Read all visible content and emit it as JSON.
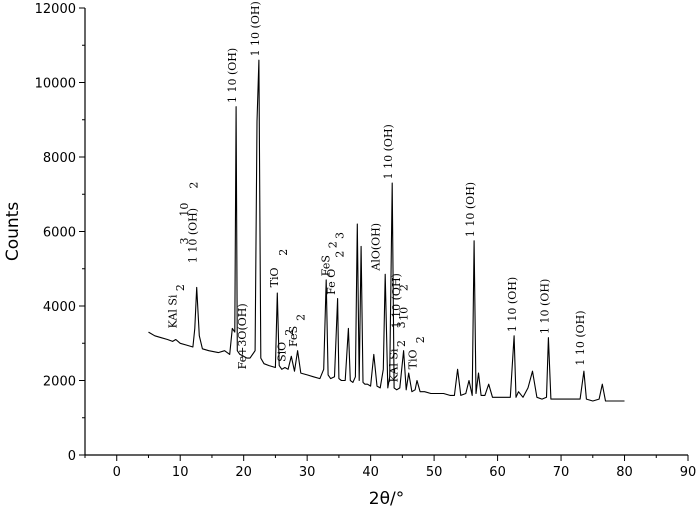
{
  "chart_data": {
    "type": "line",
    "title": "",
    "xlabel": "2θ/°",
    "ylabel": "Counts",
    "xlim": [
      -5,
      90
    ],
    "ylim": [
      0,
      12000
    ],
    "x_ticks": [
      0,
      10,
      20,
      30,
      40,
      50,
      60,
      70,
      80,
      90
    ],
    "y_ticks": [
      0,
      2000,
      4000,
      6000,
      8000,
      10000,
      12000
    ],
    "grid": false,
    "series": [
      {
        "x": [
          5.0,
          6.0,
          7.0,
          8.0,
          8.8,
          9.3,
          10.0,
          11.0,
          12.0,
          12.3,
          12.6,
          13.0,
          13.5,
          14.5,
          16.0,
          17.0,
          17.8,
          18.2,
          18.6,
          18.8,
          19.0,
          19.4,
          20.0,
          20.5,
          21.0,
          21.8,
          22.1,
          22.4,
          22.7,
          23.2,
          24.0,
          25.0,
          25.3,
          25.6,
          26.0,
          26.5,
          27.0,
          27.5,
          28.0,
          28.5,
          29.0,
          30.0,
          31.0,
          32.0,
          32.6,
          33.0,
          33.3,
          33.7,
          34.3,
          34.8,
          35.0,
          35.4,
          36.0,
          36.5,
          36.8,
          37.2,
          37.6,
          37.9,
          38.2,
          38.5,
          38.8,
          39.1,
          39.5,
          40.0,
          40.5,
          41.0,
          41.5,
          42.0,
          42.3,
          42.7,
          43.0,
          43.4,
          43.7,
          44.1,
          44.6,
          45.2,
          45.6,
          46.0,
          46.5,
          47.0,
          47.3,
          47.8,
          48.5,
          49.5,
          50.5,
          51.5,
          52.5,
          53.2,
          53.7,
          54.2,
          55.0,
          55.5,
          56.0,
          56.3,
          56.6,
          57.0,
          57.4,
          58.0,
          58.6,
          59.2,
          60.0,
          61.0,
          62.0,
          62.6,
          62.9,
          63.3,
          64.0,
          64.8,
          65.5,
          66.2,
          67.0,
          67.7,
          68.0,
          68.4,
          69.0,
          70.0,
          71.0,
          72.0,
          73.0,
          73.6,
          74.0,
          75.0,
          76.0,
          76.5,
          77.0,
          78.0,
          79.0,
          80.0
        ],
        "y": [
          3300,
          3200,
          3150,
          3100,
          3050,
          3100,
          3000,
          2950,
          2900,
          3400,
          4500,
          3200,
          2850,
          2800,
          2750,
          2800,
          2700,
          3400,
          3300,
          9350,
          2800,
          2700,
          2650,
          2600,
          2600,
          2800,
          8950,
          10600,
          2600,
          2450,
          2400,
          2350,
          4350,
          2400,
          2300,
          2350,
          2300,
          2650,
          2250,
          2800,
          2200,
          2150,
          2100,
          2050,
          2300,
          4700,
          2150,
          2050,
          2100,
          4200,
          2050,
          2000,
          2000,
          3400,
          2000,
          1950,
          2100,
          6200,
          2000,
          5600,
          1950,
          1900,
          1900,
          1850,
          2700,
          1850,
          1800,
          2300,
          4850,
          1800,
          2100,
          7300,
          1800,
          1750,
          1800,
          2800,
          1750,
          2200,
          1700,
          1750,
          2000,
          1700,
          1700,
          1650,
          1650,
          1650,
          1600,
          1600,
          2300,
          1600,
          1650,
          2000,
          1600,
          5750,
          1650,
          2200,
          1600,
          1600,
          1900,
          1550,
          1550,
          1550,
          1550,
          3200,
          1550,
          1700,
          1550,
          1800,
          2250,
          1550,
          1500,
          1550,
          3150,
          1500,
          1500,
          1500,
          1500,
          1500,
          1500,
          2250,
          1500,
          1450,
          1500,
          1900,
          1450,
          1450,
          1450,
          1450
        ]
      }
    ],
    "annotations": [
      {
        "text": "1 10 (OH)",
        "x": 18.8,
        "y": 9450,
        "rotate": -90
      },
      {
        "text": "1 10 (OH)",
        "x": 22.4,
        "y": 10700,
        "rotate": -90
      },
      {
        "text": "1 10 (OH)",
        "x": 43.4,
        "y": 7400,
        "rotate": -90
      },
      {
        "text": "1 10 (OH)",
        "x": 56.3,
        "y": 5850,
        "rotate": -90
      },
      {
        "text": "1 10 (OH)",
        "x": 62.9,
        "y": 3300,
        "rotate": -90
      },
      {
        "text": "1 10 (OH)",
        "x": 68.0,
        "y": 3250,
        "rotate": -90
      },
      {
        "text": "1 10 (OH)",
        "x": 73.6,
        "y": 2400,
        "rotate": -90
      },
      {
        "text": "1 10 (OH)",
        "x": 12.6,
        "y": 5150,
        "rotate": -90
      },
      {
        "text": "2",
        "x": 12.7,
        "y": 7150,
        "rotate": -90
      },
      {
        "text": "3",
        "x": 11.2,
        "y": 5650,
        "rotate": -90
      },
      {
        "text": "10",
        "x": 11.2,
        "y": 6400,
        "rotate": -90
      },
      {
        "text": "KAl Si",
        "x": 9.4,
        "y": 3400,
        "rotate": -90
      },
      {
        "text": "2",
        "x": 10.6,
        "y": 4400,
        "rotate": -90
      },
      {
        "text": "Fe+3O(OH)",
        "x": 20.4,
        "y": 2300,
        "rotate": -90
      },
      {
        "text": "TiO",
        "x": 25.4,
        "y": 4500,
        "rotate": -90
      },
      {
        "text": "2",
        "x": 26.8,
        "y": 5350,
        "rotate": -90
      },
      {
        "text": "SiO",
        "x": 26.6,
        "y": 2500,
        "rotate": -90
      },
      {
        "text": "2",
        "x": 27.8,
        "y": 3200,
        "rotate": -90
      },
      {
        "text": "FeS",
        "x": 28.4,
        "y": 2900,
        "rotate": -90
      },
      {
        "text": "2",
        "x": 29.6,
        "y": 3600,
        "rotate": -90
      },
      {
        "text": "FeS",
        "x": 33.5,
        "y": 4800,
        "rotate": -90
      },
      {
        "text": "2",
        "x": 34.6,
        "y": 5550,
        "rotate": -90
      },
      {
        "text": "Fe O",
        "x": 34.4,
        "y": 4300,
        "rotate": -90
      },
      {
        "text": "2",
        "x": 35.7,
        "y": 5300,
        "rotate": -90
      },
      {
        "text": "3",
        "x": 35.7,
        "y": 5800,
        "rotate": -90
      },
      {
        "text": "AlO(OH)",
        "x": 41.4,
        "y": 4950,
        "rotate": -90
      },
      {
        "text": "KAl Si",
        "x": 44.2,
        "y": 1950,
        "rotate": -90
      },
      {
        "text": "2",
        "x": 45.4,
        "y": 2900,
        "rotate": -90
      },
      {
        "text": "3",
        "x": 45.4,
        "y": 3400,
        "rotate": -90
      },
      {
        "text": "1 10 (OH)",
        "x": 44.6,
        "y": 3400,
        "rotate": -90
      },
      {
        "text": "10",
        "x": 45.8,
        "y": 3600,
        "rotate": -90
      },
      {
        "text": "2",
        "x": 45.8,
        "y": 4400,
        "rotate": -90
      },
      {
        "text": "TiO",
        "x": 47.2,
        "y": 2300,
        "rotate": -90
      },
      {
        "text": "2",
        "x": 48.4,
        "y": 3000,
        "rotate": -90
      }
    ]
  }
}
